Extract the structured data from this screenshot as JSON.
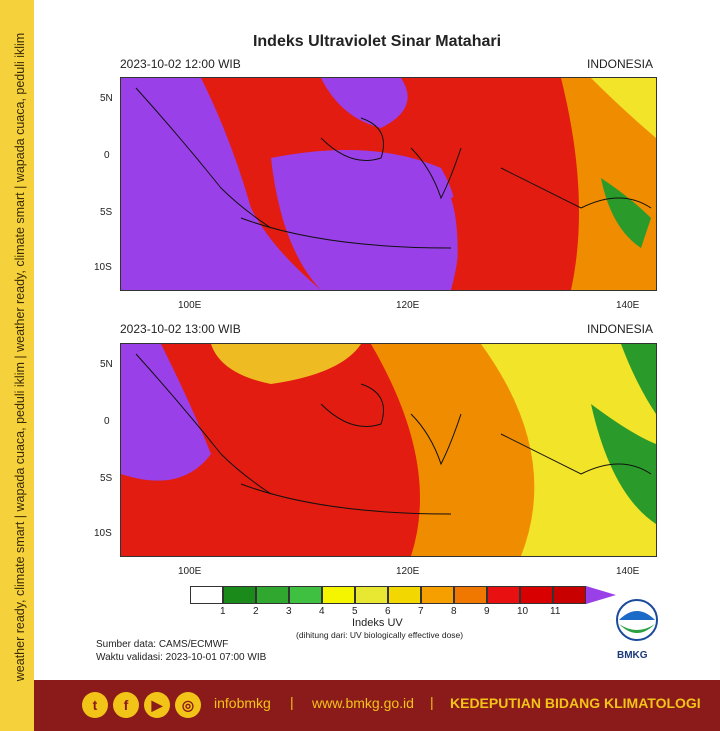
{
  "side_text": "weather ready, climate smart | wapada cuaca, peduli iklim | weather ready, climate smart | wapada cuaca, peduli iklim",
  "title": "Indeks Ultraviolet Sinar Matahari",
  "panels": [
    {
      "time": "2023-10-02  12:00 WIB",
      "region": "INDONESIA"
    },
    {
      "time": "2023-10-02  13:00 WIB",
      "region": "INDONESIA"
    }
  ],
  "lat_ticks": [
    "5N",
    "0",
    "5S",
    "10S"
  ],
  "lon_ticks": [
    "100E",
    "120E",
    "140E"
  ],
  "colorbar": {
    "label": "Indeks UV",
    "note": "(dihitung dari: UV biologically effective dose)",
    "ticks": [
      "1",
      "2",
      "3",
      "4",
      "5",
      "6",
      "7",
      "8",
      "9",
      "10",
      "11"
    ],
    "colors": [
      "#ffffff",
      "#1a8a1a",
      "#30a830",
      "#40c040",
      "#f5f500",
      "#e8e832",
      "#f2d800",
      "#f5a000",
      "#f07800",
      "#e81010",
      "#d80000",
      "#c80000",
      "#9a40e8"
    ]
  },
  "source": "Sumber data: CAMS/ECMWF",
  "valid": "Waktu validasi: 2023-10-01 07:00 WIB",
  "logo_text": "BMKG",
  "footer": {
    "social": [
      "t",
      "f",
      "▶",
      "◎"
    ],
    "handle": "infobmkg",
    "sep": "|",
    "url": "www.bmkg.go.id",
    "org": "KEDEPUTIAN BIDANG KLIMATOLOGI"
  },
  "colors": {
    "purple": "#9a40e8",
    "red": "#e21c10",
    "orange": "#f08c00",
    "yellow": "#f2e428",
    "green": "#2a9a2a"
  }
}
